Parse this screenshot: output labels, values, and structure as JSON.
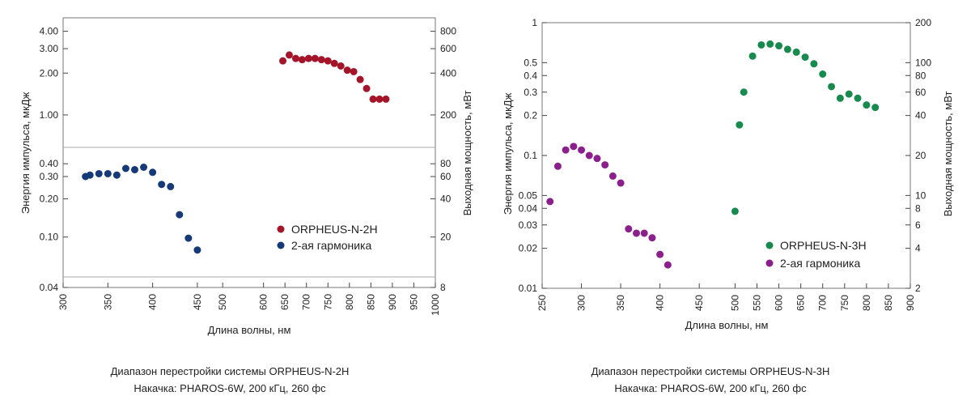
{
  "chart_data": [
    {
      "type": "scatter",
      "title": "",
      "caption": [
        "Диапазон перестройки системы ORPHEUS-N-2H",
        "Накачка: PHAROS-6W, 200 кГц, 260 фс"
      ],
      "xlabel": "Длина волны, нм",
      "ylabel": "Энергия импульса, мкДж",
      "y2label": "Выходная мощность, мВт",
      "y_scale": "log",
      "ylim": [
        0.04,
        5
      ],
      "y_ticks": [
        "0.04",
        "0.10",
        "0.20",
        "0.30",
        "0.40",
        "1.00",
        "2.00",
        "3.00",
        "4.00"
      ],
      "y2_ticks": [
        "8",
        "20",
        "40",
        "60",
        "80",
        "200",
        "400",
        "600",
        "800"
      ],
      "x_left_ticks": [
        "300",
        "350",
        "400",
        "450",
        "500"
      ],
      "x_right_ticks": [
        "600",
        "650",
        "700",
        "750",
        "800",
        "850",
        "900",
        "950",
        "1000"
      ],
      "legend_position": "bottom-right",
      "series": [
        {
          "name": "ORPHEUS-N-2H",
          "color": "#a5152a",
          "x": [
            645,
            660,
            675,
            690,
            705,
            720,
            735,
            750,
            765,
            780,
            795,
            810,
            825,
            840,
            855,
            870,
            885
          ],
          "y": [
            2.45,
            2.7,
            2.55,
            2.5,
            2.55,
            2.55,
            2.5,
            2.45,
            2.35,
            2.25,
            2.1,
            2.05,
            1.8,
            1.55,
            1.3,
            1.3,
            1.3
          ]
        },
        {
          "name": "2-ая гармоника",
          "color": "#163a78",
          "x": [
            325,
            330,
            340,
            350,
            360,
            370,
            380,
            390,
            400,
            410,
            420,
            430,
            440,
            450
          ],
          "y": [
            0.3,
            0.31,
            0.32,
            0.32,
            0.31,
            0.36,
            0.35,
            0.37,
            0.33,
            0.26,
            0.25,
            0.15,
            0.098,
            0.079
          ]
        }
      ]
    },
    {
      "type": "scatter",
      "title": "",
      "caption": [
        "Диапазон перестройки системы ORPHEUS-N-3H",
        "Накачка: PHAROS-6W, 200 кГц, 260 фс"
      ],
      "xlabel": "Длина волны, нм",
      "ylabel": "Энергия импульса, мкДж",
      "y2label": "Выходная мощность, мВт",
      "y_scale": "log",
      "ylim": [
        0.01,
        1
      ],
      "y_ticks": [
        "0.01",
        "0.02",
        "0.03",
        "0.04",
        "0.05",
        "0.1",
        "0.2",
        "0.3",
        "0.4",
        "0.5",
        "1"
      ],
      "y2_ticks": [
        "2",
        "4",
        "6",
        "8",
        "10",
        "20",
        "40",
        "60",
        "80",
        "100",
        "200"
      ],
      "x_left_ticks": [
        "250",
        "300",
        "350",
        "400",
        "450",
        "500"
      ],
      "x_right_ticks": [
        "550",
        "600",
        "650",
        "700",
        "750",
        "800",
        "850",
        "900"
      ],
      "legend_position": "bottom-right",
      "series": [
        {
          "name": "ORPHEUS-N-3H",
          "color": "#178a4e",
          "x": [
            500,
            510,
            520,
            540,
            560,
            580,
            600,
            620,
            640,
            660,
            680,
            700,
            720,
            740,
            760,
            780,
            800,
            820
          ],
          "y": [
            0.038,
            0.17,
            0.3,
            0.56,
            0.68,
            0.69,
            0.67,
            0.63,
            0.6,
            0.55,
            0.49,
            0.41,
            0.33,
            0.27,
            0.29,
            0.27,
            0.24,
            0.23
          ]
        },
        {
          "name": "2-ая гармоника",
          "color": "#8b1f8c",
          "x": [
            260,
            270,
            280,
            290,
            300,
            310,
            320,
            330,
            340,
            350,
            360,
            370,
            380,
            390,
            400,
            410
          ],
          "y": [
            0.045,
            0.083,
            0.11,
            0.117,
            0.11,
            0.1,
            0.095,
            0.085,
            0.07,
            0.062,
            0.028,
            0.026,
            0.026,
            0.024,
            0.018,
            0.015
          ]
        }
      ]
    }
  ]
}
